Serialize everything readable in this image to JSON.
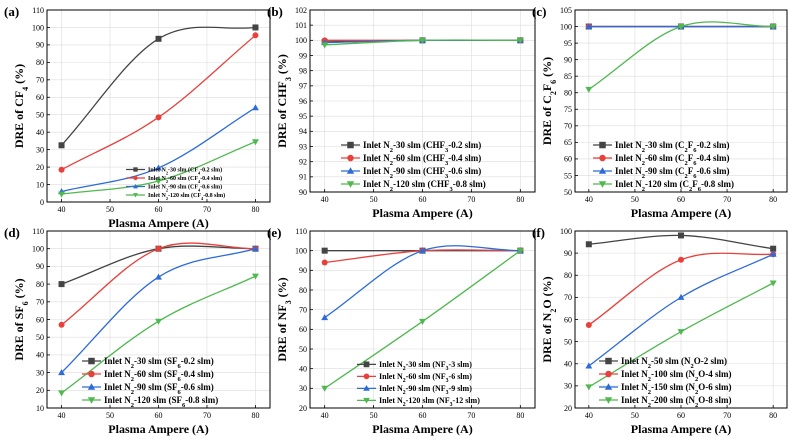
{
  "chart_data": [
    {
      "panel": "(a)",
      "type": "line",
      "ylabel_main": "DRE of CF",
      "ylabel_sub": "4",
      "ylabel_tail": " (%)",
      "xlabel": "Plasma Ampere (A)",
      "x": [
        40,
        60,
        80
      ],
      "xlim": [
        37,
        83
      ],
      "xticks": [
        40,
        50,
        60,
        70,
        80
      ],
      "ylim": [
        0,
        110
      ],
      "yticks": [
        0,
        10,
        20,
        30,
        40,
        50,
        60,
        70,
        80,
        90,
        100,
        110
      ],
      "legend_position": "bottom-right",
      "series": [
        {
          "name": "Inlet N2-30 slm (CF4-0.2 slm)",
          "label": [
            [
              "Inlet N",
              false
            ],
            [
              "2",
              true
            ],
            [
              "-30 slm (CF",
              false
            ],
            [
              "4",
              true
            ],
            [
              "-0.2 slm)",
              false
            ]
          ],
          "color": "#444444",
          "marker": "square",
          "values": [
            32.5,
            93.5,
            100
          ]
        },
        {
          "name": "Inlet N2-60 slm (CF4-0.4 slm)",
          "label": [
            [
              "Inlet N",
              false
            ],
            [
              "2",
              true
            ],
            [
              "-60 slm (CF",
              false
            ],
            [
              "4",
              true
            ],
            [
              "-0.4 slm)",
              false
            ]
          ],
          "color": "#e8413c",
          "marker": "circle",
          "values": [
            18.5,
            48.5,
            95.5
          ]
        },
        {
          "name": "Inlet N2-90 slm (CF4-0.6 slm)",
          "label": [
            [
              "Inlet N",
              false
            ],
            [
              "2",
              true
            ],
            [
              "-90 slm (CF",
              false
            ],
            [
              "4",
              true
            ],
            [
              "-0.6 slm)",
              false
            ]
          ],
          "color": "#2d6bd8",
          "marker": "triangle-up",
          "values": [
            6,
            19.5,
            54
          ]
        },
        {
          "name": "Inlet N2-120 slm (CF4-0.8 slm)",
          "label": [
            [
              "Inlet N",
              false
            ],
            [
              "2",
              true
            ],
            [
              "-120 slm (CF",
              false
            ],
            [
              "4",
              true
            ],
            [
              "-0.8 slm)",
              false
            ]
          ],
          "color": "#4fb84f",
          "marker": "triangle-down",
          "values": [
            4.5,
            12,
            34.5
          ]
        }
      ]
    },
    {
      "panel": "(b)",
      "type": "line",
      "ylabel_main": "DRE of CHF",
      "ylabel_sub": "3",
      "ylabel_tail": " (%)",
      "xlabel": "Plasma Ampere (A)",
      "x": [
        40,
        60,
        80
      ],
      "xlim": [
        37,
        83
      ],
      "xticks": [
        40,
        50,
        60,
        70,
        80
      ],
      "ylim": [
        90,
        102
      ],
      "yticks": [
        90,
        91,
        92,
        93,
        94,
        95,
        96,
        97,
        98,
        99,
        100,
        101,
        102
      ],
      "legend_position": "bottom-right",
      "series": [
        {
          "name": "Inlet N2-30 slm (CHF3-0.2 slm)",
          "label": [
            [
              "Inlet N",
              false
            ],
            [
              "2",
              true
            ],
            [
              "-30 slm (CHF",
              false
            ],
            [
              "3",
              true
            ],
            [
              "-0.2 slm)",
              false
            ]
          ],
          "color": "#444444",
          "marker": "square",
          "values": [
            99.9,
            100,
            100
          ]
        },
        {
          "name": "Inlet N2-60 slm (CHF3-0.4 slm)",
          "label": [
            [
              "Inlet N",
              false
            ],
            [
              "2",
              true
            ],
            [
              "-60 slm (CHF",
              false
            ],
            [
              "3",
              true
            ],
            [
              "-0.4 slm)",
              false
            ]
          ],
          "color": "#e8413c",
          "marker": "circle",
          "values": [
            100,
            100,
            100
          ]
        },
        {
          "name": "Inlet N2-90 slm (CHF3-0.6 slm)",
          "label": [
            [
              "Inlet N",
              false
            ],
            [
              "2",
              true
            ],
            [
              "-90 slm (CHF",
              false
            ],
            [
              "3",
              true
            ],
            [
              "-0.6 slm)",
              false
            ]
          ],
          "color": "#2d6bd8",
          "marker": "triangle-up",
          "values": [
            99.85,
            100,
            100
          ]
        },
        {
          "name": "Inlet N2-120 slm (CHF3-0.8 slm)",
          "label": [
            [
              "Inlet N",
              false
            ],
            [
              "2",
              true
            ],
            [
              "-120 slm (CHF",
              false
            ],
            [
              "3",
              true
            ],
            [
              "-0.8 slm)",
              false
            ]
          ],
          "color": "#4fb84f",
          "marker": "triangle-down",
          "values": [
            99.7,
            100,
            100
          ]
        }
      ]
    },
    {
      "panel": "(c)",
      "type": "line",
      "ylabel_main": "DRE of C",
      "ylabel_sub": "2",
      "ylabel_mid": "F",
      "ylabel_sub2": "6",
      "ylabel_tail": " (%)",
      "xlabel": "Plasma Ampere (A)",
      "x": [
        40,
        60,
        80
      ],
      "xlim": [
        37,
        83
      ],
      "xticks": [
        40,
        50,
        60,
        70,
        80
      ],
      "ylim": [
        50,
        105
      ],
      "yticks": [
        50,
        55,
        60,
        65,
        70,
        75,
        80,
        85,
        90,
        95,
        100,
        105
      ],
      "legend_position": "bottom-right",
      "series": [
        {
          "name": "Inlet N2-30 slm (C2F6-0.2 slm)",
          "label": [
            [
              "Inlet N",
              false
            ],
            [
              "2",
              true
            ],
            [
              "-30 slm (C",
              false
            ],
            [
              "2",
              true
            ],
            [
              "F",
              false
            ],
            [
              "6",
              true
            ],
            [
              "-0.2 slm)",
              false
            ]
          ],
          "color": "#444444",
          "marker": "square",
          "values": [
            100,
            100,
            100
          ]
        },
        {
          "name": "Inlet N2-60 slm (C2F6-0.4 slm)",
          "label": [
            [
              "Inlet N",
              false
            ],
            [
              "2",
              true
            ],
            [
              "-60 slm (C",
              false
            ],
            [
              "2",
              true
            ],
            [
              "F",
              false
            ],
            [
              "6",
              true
            ],
            [
              "-0.4 slm)",
              false
            ]
          ],
          "color": "#e8413c",
          "marker": "circle",
          "values": [
            100,
            100,
            100
          ]
        },
        {
          "name": "Inlet N2-90 slm (C2F6-0.6 slm)",
          "label": [
            [
              "Inlet N",
              false
            ],
            [
              "2",
              true
            ],
            [
              "-90 slm (C",
              false
            ],
            [
              "2",
              true
            ],
            [
              "F",
              false
            ],
            [
              "6",
              true
            ],
            [
              "-0.6 slm)",
              false
            ]
          ],
          "color": "#2d6bd8",
          "marker": "triangle-up",
          "values": [
            100,
            100,
            100
          ]
        },
        {
          "name": "Inlet N2-120 slm (C2F6-0.8 slm)",
          "label": [
            [
              "Inlet N",
              false
            ],
            [
              "2",
              true
            ],
            [
              "-120 slm (C",
              false
            ],
            [
              "2",
              true
            ],
            [
              "F",
              false
            ],
            [
              "6",
              true
            ],
            [
              "-0.8 slm)",
              false
            ]
          ],
          "color": "#4fb84f",
          "marker": "triangle-down",
          "values": [
            81,
            100,
            100
          ]
        }
      ]
    },
    {
      "panel": "(d)",
      "type": "line",
      "ylabel_main": "DRE of SF",
      "ylabel_sub": "6",
      "ylabel_tail": " (%)",
      "xlabel": "Plasma Ampere (A)",
      "x": [
        40,
        60,
        80
      ],
      "xlim": [
        37,
        83
      ],
      "xticks": [
        40,
        50,
        60,
        70,
        80
      ],
      "ylim": [
        10,
        110
      ],
      "yticks": [
        10,
        20,
        30,
        40,
        50,
        60,
        70,
        80,
        90,
        100,
        110
      ],
      "legend_position": "bottom-right",
      "series": [
        {
          "name": "Inlet N2-30 slm (SF6-0.2 slm)",
          "label": [
            [
              "Inlet N",
              false
            ],
            [
              "2",
              true
            ],
            [
              "-30 slm (SF",
              false
            ],
            [
              "6",
              true
            ],
            [
              "-0.2 slm)",
              false
            ]
          ],
          "color": "#444444",
          "marker": "square",
          "values": [
            80,
            100,
            100
          ]
        },
        {
          "name": "Inlet N2-60 slm (SF6-0.4 slm)",
          "label": [
            [
              "Inlet N",
              false
            ],
            [
              "2",
              true
            ],
            [
              "-60 slm (SF",
              false
            ],
            [
              "6",
              true
            ],
            [
              "-0.4 slm)",
              false
            ]
          ],
          "color": "#e8413c",
          "marker": "circle",
          "values": [
            57,
            100,
            100
          ]
        },
        {
          "name": "Inlet N2-90 slm (SF6-0.6 slm)",
          "label": [
            [
              "Inlet N",
              false
            ],
            [
              "2",
              true
            ],
            [
              "-90 slm (SF",
              false
            ],
            [
              "6",
              true
            ],
            [
              "-0.6 slm)",
              false
            ]
          ],
          "color": "#2d6bd8",
          "marker": "triangle-up",
          "values": [
            30,
            84,
            100
          ]
        },
        {
          "name": "Inlet N2-120 slm (SF6-0.8 slm)",
          "label": [
            [
              "Inlet N",
              false
            ],
            [
              "2",
              true
            ],
            [
              "-120 slm (SF",
              false
            ],
            [
              "6",
              true
            ],
            [
              "-0.8 slm)",
              false
            ]
          ],
          "color": "#4fb84f",
          "marker": "triangle-down",
          "values": [
            18.5,
            59,
            84.5
          ]
        }
      ]
    },
    {
      "panel": "(e)",
      "type": "line",
      "ylabel_main": "DRE of NF",
      "ylabel_sub": "3",
      "ylabel_tail": " (%)",
      "xlabel": "Plasma Ampere (A)",
      "x": [
        40,
        60,
        80
      ],
      "xlim": [
        37,
        83
      ],
      "xticks": [
        40,
        50,
        60,
        70,
        80
      ],
      "ylim": [
        20,
        110
      ],
      "yticks": [
        20,
        30,
        40,
        50,
        60,
        70,
        80,
        90,
        100,
        110
      ],
      "legend_position": "bottom-right",
      "series": [
        {
          "name": "Inlet N2-30 slm (NF3-3 slm)",
          "label": [
            [
              "Inlet N",
              false
            ],
            [
              "2",
              true
            ],
            [
              "-30 slm (NF",
              false
            ],
            [
              "3",
              true
            ],
            [
              "-3 slm)",
              false
            ]
          ],
          "color": "#444444",
          "marker": "square",
          "values": [
            100,
            100,
            100
          ]
        },
        {
          "name": "Inlet N2-60 slm (NF3-6 slm)",
          "label": [
            [
              "Inlet N",
              false
            ],
            [
              "2",
              true
            ],
            [
              "-60 slm (NF",
              false
            ],
            [
              "3",
              true
            ],
            [
              "-6 slm)",
              false
            ]
          ],
          "color": "#e8413c",
          "marker": "circle",
          "values": [
            94,
            100,
            100
          ]
        },
        {
          "name": "Inlet N2-90 slm (NF3-9 slm)",
          "label": [
            [
              "Inlet N",
              false
            ],
            [
              "2",
              true
            ],
            [
              "-90 slm (NF",
              false
            ],
            [
              "3",
              true
            ],
            [
              "-9 slm)",
              false
            ]
          ],
          "color": "#2d6bd8",
          "marker": "triangle-up",
          "values": [
            66,
            100,
            100
          ]
        },
        {
          "name": "Inlet N2-120 slm (NF3-12 slm)",
          "label": [
            [
              "Inlet N",
              false
            ],
            [
              "2",
              true
            ],
            [
              "-120 slm (NF",
              false
            ],
            [
              "3",
              true
            ],
            [
              "-12 slm)",
              false
            ]
          ],
          "color": "#4fb84f",
          "marker": "triangle-down",
          "values": [
            30,
            64,
            100
          ]
        }
      ]
    },
    {
      "panel": "(f)",
      "type": "line",
      "ylabel_main": "DRE of N",
      "ylabel_sub": "2",
      "ylabel_mid": "O",
      "ylabel_tail": " (%)",
      "xlabel": "Plasma Ampere (A)",
      "x": [
        40,
        60,
        80
      ],
      "xlim": [
        37,
        83
      ],
      "xticks": [
        40,
        50,
        60,
        70,
        80
      ],
      "ylim": [
        20,
        100
      ],
      "yticks": [
        20,
        30,
        40,
        50,
        60,
        70,
        80,
        90,
        100
      ],
      "legend_position": "bottom-right",
      "series": [
        {
          "name": "Inlet N2-50 slm (N2O-2 slm)",
          "label": [
            [
              "Inlet N",
              false
            ],
            [
              "2",
              true
            ],
            [
              "-50 slm (N",
              false
            ],
            [
              "2",
              true
            ],
            [
              "O-2 slm)",
              false
            ]
          ],
          "color": "#444444",
          "marker": "square",
          "values": [
            94,
            98,
            92
          ]
        },
        {
          "name": "Inlet N2-100 slm (N2O-4 slm)",
          "label": [
            [
              "Inlet N",
              false
            ],
            [
              "2",
              true
            ],
            [
              "-100 slm (N",
              false
            ],
            [
              "2",
              true
            ],
            [
              "O-4 slm)",
              false
            ]
          ],
          "color": "#e8413c",
          "marker": "circle",
          "values": [
            57.5,
            87,
            89.5
          ]
        },
        {
          "name": "Inlet N2-150 slm (N2O-6 slm)",
          "label": [
            [
              "Inlet N",
              false
            ],
            [
              "2",
              true
            ],
            [
              "-150 slm (N",
              false
            ],
            [
              "2",
              true
            ],
            [
              "O-6 slm)",
              false
            ]
          ],
          "color": "#2d6bd8",
          "marker": "triangle-up",
          "values": [
            39,
            70,
            89.5
          ]
        },
        {
          "name": "Inlet N2-200 slm (N2O-8 slm)",
          "label": [
            [
              "Inlet N",
              false
            ],
            [
              "2",
              true
            ],
            [
              "-200 slm (N",
              false
            ],
            [
              "2",
              true
            ],
            [
              "O-8 slm)",
              false
            ]
          ],
          "color": "#4fb84f",
          "marker": "triangle-down",
          "values": [
            29.5,
            54.5,
            76.5
          ]
        }
      ]
    }
  ]
}
